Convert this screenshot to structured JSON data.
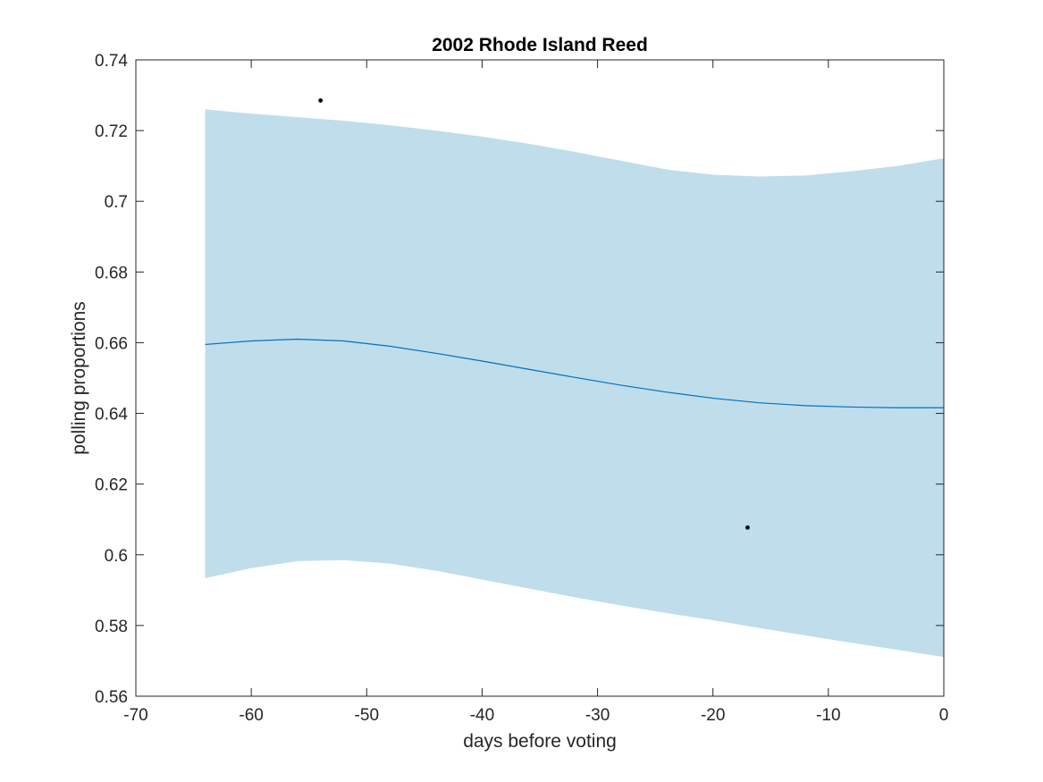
{
  "chart_data": {
    "type": "line",
    "title": "2002 Rhode Island Reed",
    "xlabel": "days before voting",
    "ylabel": "polling proportions",
    "xlim": [
      -70,
      0
    ],
    "ylim": [
      0.56,
      0.74
    ],
    "xticks": [
      -70,
      -60,
      -50,
      -40,
      -30,
      -20,
      -10,
      0
    ],
    "yticks": [
      0.56,
      0.58,
      0.6,
      0.62,
      0.64,
      0.66,
      0.68,
      0.7,
      0.72,
      0.74
    ],
    "xtick_labels": [
      "-70",
      "-60",
      "-50",
      "-40",
      "-30",
      "-20",
      "-10",
      "0"
    ],
    "ytick_labels": [
      "0.56",
      "0.58",
      "0.6",
      "0.62",
      "0.64",
      "0.66",
      "0.68",
      "0.7",
      "0.72",
      "0.74"
    ],
    "grid": false,
    "series": [
      {
        "kind": "line",
        "color": "#0072BD",
        "x": [
          -64,
          -60,
          -56,
          -52,
          -48,
          -44,
          -40,
          -36,
          -32,
          -28,
          -24,
          -20,
          -16,
          -12,
          -8,
          -4,
          0
        ],
        "y": [
          0.6595,
          0.6605,
          0.661,
          0.6605,
          0.659,
          0.657,
          0.6548,
          0.6525,
          0.6502,
          0.648,
          0.646,
          0.6443,
          0.643,
          0.6422,
          0.6418,
          0.6416,
          0.6416
        ]
      }
    ],
    "band": {
      "color": "#C0DDEC",
      "x": [
        -64,
        -60,
        -56,
        -52,
        -48,
        -44,
        -40,
        -36,
        -32,
        -28,
        -24,
        -20,
        -16,
        -12,
        -8,
        -4,
        0
      ],
      "upper": [
        0.726,
        0.7248,
        0.7238,
        0.7228,
        0.7215,
        0.72,
        0.7183,
        0.7163,
        0.714,
        0.7115,
        0.709,
        0.7075,
        0.707,
        0.7073,
        0.7085,
        0.71,
        0.7122
      ],
      "lower": [
        0.5934,
        0.5962,
        0.5982,
        0.5985,
        0.5975,
        0.5955,
        0.593,
        0.5905,
        0.588,
        0.5857,
        0.5835,
        0.5815,
        0.5793,
        0.5772,
        0.5751,
        0.5731,
        0.5711
      ]
    },
    "points": {
      "color": "#000000",
      "x": [
        -54,
        -17
      ],
      "y": [
        0.7285,
        0.6077
      ]
    }
  }
}
